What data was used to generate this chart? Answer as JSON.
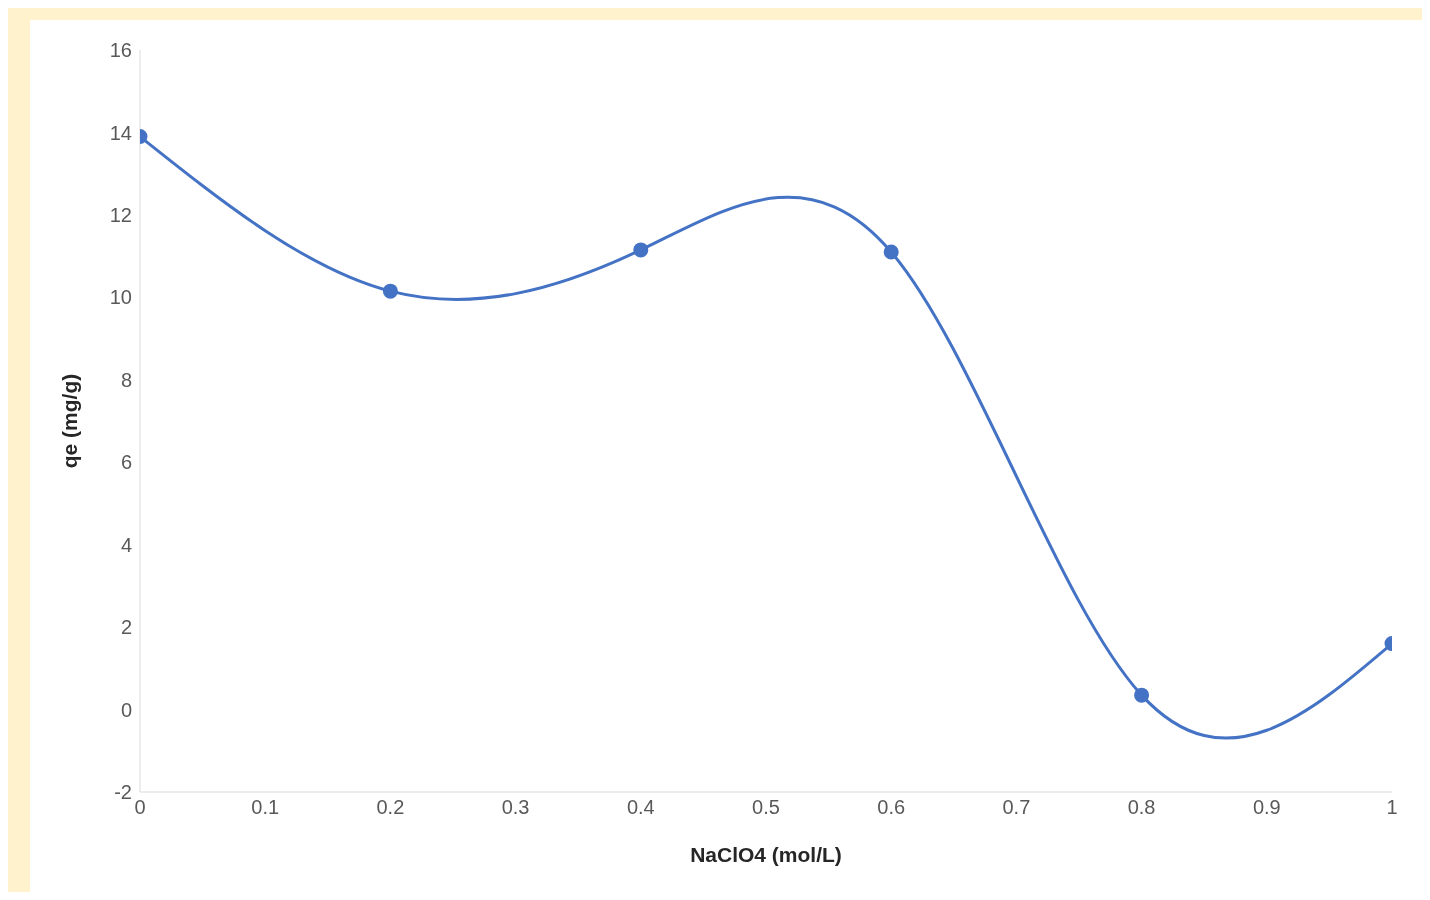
{
  "chart_data": {
    "type": "line",
    "xlabel": "NaClO4 (mol/L)",
    "ylabel": "qe (mg/g)",
    "x": [
      0,
      0.2,
      0.4,
      0.6,
      0.8,
      1
    ],
    "series": [
      {
        "color": "#4472c4",
        "values": [
          13.9,
          10.15,
          11.15,
          11.1,
          0.35,
          1.6
        ]
      }
    ],
    "xlim": [
      0,
      1
    ],
    "xticks": [
      0,
      0.1,
      0.2,
      0.3,
      0.4,
      0.5,
      0.6,
      0.7,
      0.8,
      0.9,
      1
    ],
    "ylim": [
      -2,
      16
    ],
    "yticks": [
      -2,
      0,
      2,
      4,
      6,
      8,
      10,
      12,
      14,
      16
    ],
    "grid": false,
    "legend": false,
    "marker": "circle",
    "line_style": "solid"
  }
}
